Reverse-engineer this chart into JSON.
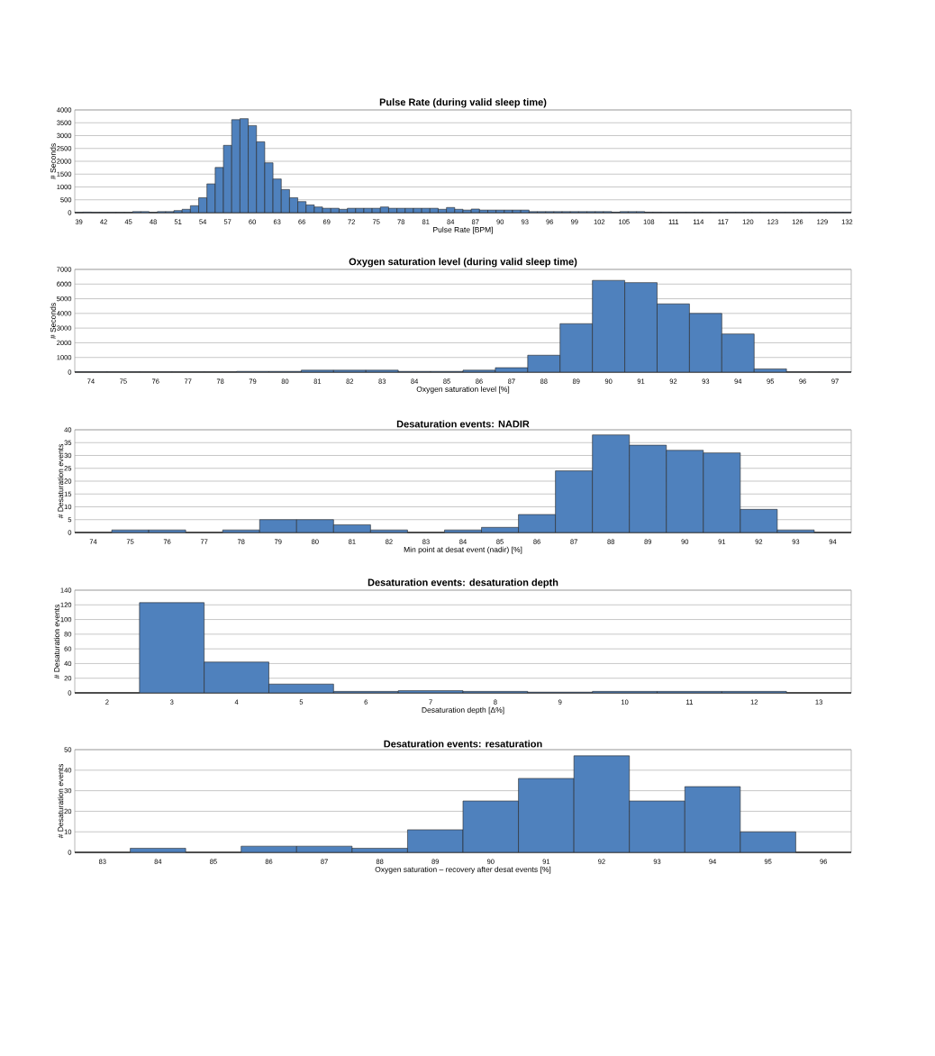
{
  "chart_data": [
    {
      "type": "histogram",
      "title": "Pulse Rate (during valid sleep time)",
      "xlabel": "Pulse Rate [BPM]",
      "ylabel": "# Seconds",
      "color": "#4f81bd",
      "grid": "y",
      "bins": [
        38.5,
        39.5,
        40.5,
        41.5,
        42.5,
        43.5,
        44.5,
        45.5,
        46.5,
        47.5,
        48.5,
        49.5,
        50.5,
        51.5,
        52.5,
        53.5,
        54.5,
        55.5,
        56.5,
        57.5,
        58.5,
        59.5,
        60.5,
        61.5,
        62.5,
        63.5,
        64.5,
        65.5,
        66.5,
        67.5,
        68.5,
        69.5,
        70.5,
        71.5,
        72.5,
        73.5,
        74.5,
        75.5,
        76.5,
        77.5,
        78.5,
        79.5,
        80.5,
        81.5,
        82.5,
        83.5,
        84.5,
        85.5,
        86.5,
        87.5,
        88.5,
        89.5,
        90.5,
        91.5,
        92.5,
        93.5,
        94.5,
        95.5,
        96.5,
        97.5,
        98.5,
        99.5,
        100.5,
        101.5,
        102.5,
        103.5,
        104.5,
        105.5,
        106.5,
        107.5,
        108.5,
        109.5,
        110.5,
        111.5,
        112.5,
        113.5,
        114.5,
        115.5,
        116.5,
        117.5,
        118.5,
        119.5,
        120.5,
        121.5,
        122.5,
        123.5,
        124.5,
        125.5,
        126.5,
        127.5,
        128.5,
        129.5,
        130.5,
        131.5,
        132.5
      ],
      "values": [
        10,
        20,
        10,
        10,
        10,
        10,
        10,
        40,
        40,
        10,
        40,
        40,
        80,
        130,
        270,
        580,
        1120,
        1760,
        2620,
        3620,
        3660,
        3390,
        2760,
        1940,
        1310,
        900,
        580,
        430,
        300,
        220,
        170,
        170,
        130,
        170,
        170,
        170,
        170,
        220,
        170,
        170,
        170,
        170,
        170,
        170,
        130,
        200,
        130,
        100,
        140,
        100,
        100,
        100,
        100,
        100,
        100,
        40,
        40,
        40,
        40,
        40,
        40,
        40,
        40,
        40,
        40,
        20,
        40,
        40,
        40,
        20,
        20,
        20,
        20,
        20,
        20,
        20,
        20,
        20,
        20,
        20,
        20,
        20,
        20,
        20,
        20,
        20,
        20,
        20,
        20,
        20,
        20,
        20,
        20,
        20
      ],
      "xlim": [
        38.5,
        132.5
      ],
      "xticks": [
        39,
        42,
        45,
        48,
        51,
        54,
        57,
        60,
        63,
        66,
        69,
        72,
        75,
        78,
        81,
        84,
        87,
        90,
        93,
        96,
        99,
        102,
        105,
        108,
        111,
        114,
        117,
        120,
        123,
        126,
        129,
        132
      ],
      "ylim": [
        0,
        4000
      ],
      "yticks": [
        0,
        500,
        1000,
        1500,
        2000,
        2500,
        3000,
        3500,
        4000
      ]
    },
    {
      "type": "histogram",
      "title": "Oxygen saturation level (during valid sleep time)",
      "xlabel": "Oxygen saturation level [%]",
      "ylabel": "# Seconds",
      "color": "#4f81bd",
      "grid": "y",
      "bins": [
        73.5,
        74.5,
        75.5,
        76.5,
        77.5,
        78.5,
        79.5,
        80.5,
        81.5,
        82.5,
        83.5,
        84.5,
        85.5,
        86.5,
        87.5,
        88.5,
        89.5,
        90.5,
        91.5,
        92.5,
        93.5,
        94.5,
        95.5,
        96.5,
        97.5
      ],
      "values": [
        20,
        20,
        20,
        20,
        20,
        50,
        50,
        130,
        130,
        130,
        50,
        50,
        130,
        300,
        1150,
        3300,
        6250,
        6100,
        4650,
        4000,
        2600,
        220,
        20,
        20
      ],
      "xlim": [
        73.5,
        97.5
      ],
      "xticks": [
        74,
        75,
        76,
        77,
        78,
        79,
        80,
        81,
        82,
        83,
        84,
        85,
        86,
        87,
        88,
        89,
        90,
        91,
        92,
        93,
        94,
        95,
        96,
        97
      ],
      "ylim": [
        0,
        7000
      ],
      "yticks": [
        0,
        1000,
        2000,
        3000,
        4000,
        5000,
        6000,
        7000
      ]
    },
    {
      "type": "histogram",
      "title": "Desaturation events: NADIR",
      "xlabel": "Min point at desat event (nadir) [%]",
      "ylabel": "# Desaturation events",
      "color": "#4f81bd",
      "grid": "y",
      "bins": [
        73.5,
        74.5,
        75.5,
        76.5,
        77.5,
        78.5,
        79.5,
        80.5,
        81.5,
        82.5,
        83.5,
        84.5,
        85.5,
        86.5,
        87.5,
        88.5,
        89.5,
        90.5,
        91.5,
        92.5,
        93.5,
        94.5
      ],
      "values": [
        0,
        1,
        1,
        0,
        1,
        5,
        5,
        3,
        1,
        0,
        1,
        2,
        7,
        24,
        38,
        34,
        32,
        31,
        9,
        1,
        0
      ],
      "xlim": [
        73.5,
        94.5
      ],
      "xticks": [
        74,
        75,
        76,
        77,
        78,
        79,
        80,
        81,
        82,
        83,
        84,
        85,
        86,
        87,
        88,
        89,
        90,
        91,
        92,
        93,
        94
      ],
      "ylim": [
        0,
        40
      ],
      "yticks": [
        0,
        5,
        10,
        15,
        20,
        25,
        30,
        35,
        40
      ]
    },
    {
      "type": "histogram",
      "title": "Desaturation events: desaturation depth",
      "xlabel": "Desaturation depth [Δ%]",
      "ylabel": "# Desaturation events",
      "color": "#4f81bd",
      "grid": "y",
      "bins": [
        1.5,
        2.5,
        3.5,
        4.5,
        5.5,
        6.5,
        7.5,
        8.5,
        9.5,
        10.5,
        11.5,
        12.5,
        13.5
      ],
      "values": [
        0,
        123,
        42,
        12,
        2,
        3,
        2,
        1,
        2,
        2,
        2,
        0
      ],
      "xlim": [
        1.5,
        13.5
      ],
      "xticks": [
        2,
        3,
        4,
        5,
        6,
        7,
        8,
        9,
        10,
        11,
        12,
        13
      ],
      "ylim": [
        0,
        140
      ],
      "yticks": [
        0,
        20,
        40,
        60,
        80,
        100,
        120,
        140
      ]
    },
    {
      "type": "histogram",
      "title": "Desaturation events: resaturation",
      "xlabel": "Oxygen saturation – recovery after desat events [%]",
      "ylabel": "# Desaturation events",
      "color": "#4f81bd",
      "grid": "y",
      "bins": [
        82.5,
        83.5,
        84.5,
        85.5,
        86.5,
        87.5,
        88.5,
        89.5,
        90.5,
        91.5,
        92.5,
        93.5,
        94.5,
        95.5,
        96.5
      ],
      "values": [
        0,
        2,
        0,
        3,
        3,
        2,
        11,
        25,
        36,
        47,
        25,
        32,
        10,
        0
      ],
      "xlim": [
        82.5,
        96.5
      ],
      "xticks": [
        83,
        84,
        85,
        86,
        87,
        88,
        89,
        90,
        91,
        92,
        93,
        94,
        95,
        96
      ],
      "ylim": [
        0,
        50
      ],
      "yticks": [
        0,
        10,
        20,
        30,
        40,
        50
      ]
    }
  ]
}
